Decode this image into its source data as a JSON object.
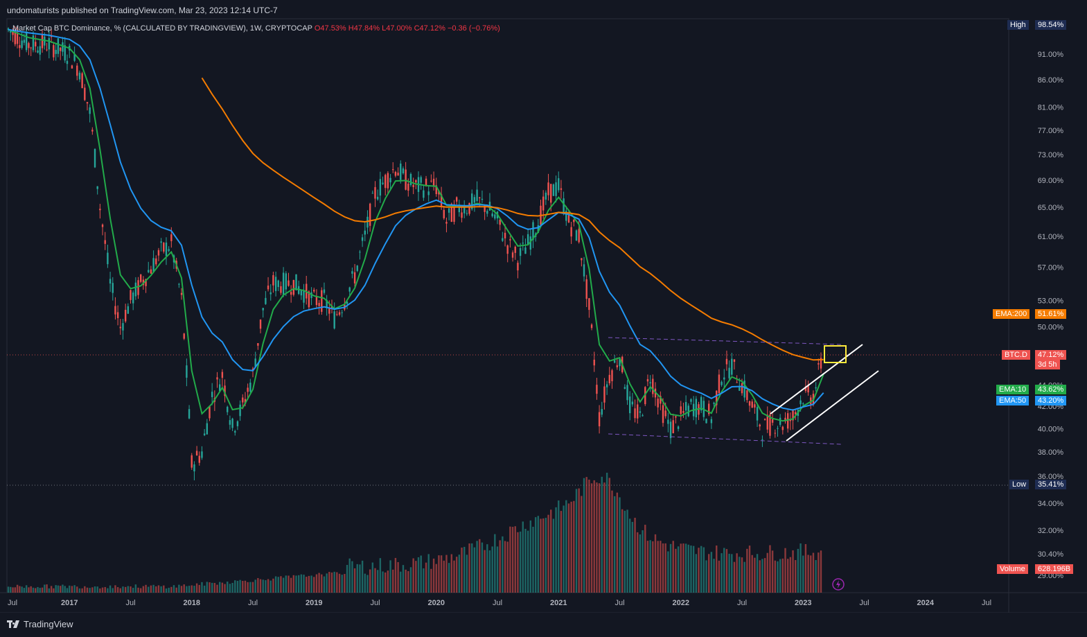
{
  "header": {
    "publisher_line": "undomaturists published on TradingView.com, Mar 23, 2023 12:14 UTC-7"
  },
  "legend": {
    "symbol_desc": "Market Cap BTC Dominance, % (CALCULATED BY TRADINGVIEW), 1W, CRYPTOCAP",
    "open": "O47.53%",
    "high": "H47.84%",
    "low": "L47.00%",
    "close": "C47.12%",
    "change": "−0.36 (−0.76%)"
  },
  "footer": {
    "brand": "TradingView"
  },
  "labels": {
    "high_tag": "High",
    "high_value": "98.54%",
    "low_tag": "Low",
    "low_value": "35.41%",
    "ema200_tag": "EMA:200",
    "ema200_value": "51.61%",
    "btcd_tag": "BTC.D",
    "btcd_value": "47.12%",
    "btcd_countdown": "3d 5h",
    "ema10_tag": "EMA:10",
    "ema10_value": "43.62%",
    "ema50_tag": "EMA:50",
    "ema50_value": "43.20%",
    "volume_tag": "Volume",
    "volume_value": "628.196B"
  },
  "colors": {
    "background": "#131722",
    "up": "#26a69a",
    "down": "#ef5350",
    "ema10": "#22ab4a",
    "ema50": "#2196f3",
    "ema200": "#f57c00",
    "highlight_box": "#ffeb3b",
    "channel": "#ffffff",
    "range_dashed": "#7e57c2"
  },
  "chart_data": {
    "type": "candlestick",
    "title": "Market Cap BTC Dominance, % (CALCULATED BY TRADINGVIEW), 1W, CRYPTOCAP",
    "x_ticks": [
      "Jul",
      "2017",
      "Jul",
      "2018",
      "Jul",
      "2019",
      "Jul",
      "2020",
      "Jul",
      "2021",
      "Jul",
      "2022",
      "Jul",
      "2023",
      "Jul",
      "2024",
      "Jul"
    ],
    "y_ticks": [
      "91.00%",
      "86.00%",
      "81.00%",
      "77.00%",
      "73.00%",
      "69.00%",
      "65.00%",
      "61.00%",
      "57.00%",
      "53.00%",
      "50.00%",
      "44.00%",
      "42.00%",
      "40.00%",
      "38.00%",
      "36.00%",
      "34.00%",
      "32.00%",
      "30.40%",
      "29.00%"
    ],
    "y_scale": "log",
    "series": [
      {
        "name": "BTC.D",
        "note": "weekly closes, approximate",
        "points": [
          [
            "2016-07",
            96
          ],
          [
            "2016-09",
            93
          ],
          [
            "2016-11",
            93
          ],
          [
            "2017-01",
            91
          ],
          [
            "2017-02",
            88
          ],
          [
            "2017-03",
            80
          ],
          [
            "2017-04",
            65
          ],
          [
            "2017-05",
            55
          ],
          [
            "2017-06",
            50
          ],
          [
            "2017-07",
            53
          ],
          [
            "2017-08",
            55
          ],
          [
            "2017-09",
            57
          ],
          [
            "2017-10",
            59
          ],
          [
            "2017-11",
            60
          ],
          [
            "2017-12",
            53
          ],
          [
            "2018-01",
            37
          ],
          [
            "2018-02",
            38
          ],
          [
            "2018-03",
            43
          ],
          [
            "2018-04",
            45
          ],
          [
            "2018-05",
            40
          ],
          [
            "2018-06",
            42
          ],
          [
            "2018-07",
            45
          ],
          [
            "2018-08",
            52
          ],
          [
            "2018-09",
            55
          ],
          [
            "2018-10",
            55
          ],
          [
            "2018-11",
            55
          ],
          [
            "2018-12",
            54
          ],
          [
            "2019-01",
            53
          ],
          [
            "2019-02",
            53
          ],
          [
            "2019-03",
            51
          ],
          [
            "2019-04",
            53
          ],
          [
            "2019-05",
            56
          ],
          [
            "2019-06",
            61
          ],
          [
            "2019-07",
            67
          ],
          [
            "2019-08",
            69
          ],
          [
            "2019-09",
            71
          ],
          [
            "2019-10",
            69
          ],
          [
            "2019-11",
            68
          ],
          [
            "2019-12",
            68
          ],
          [
            "2020-01",
            68
          ],
          [
            "2020-02",
            63
          ],
          [
            "2020-03",
            65
          ],
          [
            "2020-04",
            65
          ],
          [
            "2020-05",
            66
          ],
          [
            "2020-06",
            65
          ],
          [
            "2020-07",
            63
          ],
          [
            "2020-08",
            60
          ],
          [
            "2020-09",
            58
          ],
          [
            "2020-10",
            60
          ],
          [
            "2020-11",
            63
          ],
          [
            "2020-12",
            67
          ],
          [
            "2021-01",
            68
          ],
          [
            "2021-02",
            63
          ],
          [
            "2021-03",
            61
          ],
          [
            "2021-04",
            52
          ],
          [
            "2021-05",
            41
          ],
          [
            "2021-06",
            45
          ],
          [
            "2021-07",
            47
          ],
          [
            "2021-08",
            42
          ],
          [
            "2021-09",
            41
          ],
          [
            "2021-10",
            45
          ],
          [
            "2021-11",
            42
          ],
          [
            "2021-12",
            40
          ],
          [
            "2022-01",
            41
          ],
          [
            "2022-02",
            42
          ],
          [
            "2022-03",
            42
          ],
          [
            "2022-04",
            41
          ],
          [
            "2022-05",
            45
          ],
          [
            "2022-06",
            46
          ],
          [
            "2022-07",
            44
          ],
          [
            "2022-08",
            42
          ],
          [
            "2022-09",
            40
          ],
          [
            "2022-10",
            40.5
          ],
          [
            "2022-11",
            40.5
          ],
          [
            "2022-12",
            41
          ],
          [
            "2023-01",
            43
          ],
          [
            "2023-02",
            43
          ],
          [
            "2023-03",
            47.12
          ]
        ]
      },
      {
        "name": "EMA:10",
        "last": 43.62
      },
      {
        "name": "EMA:50",
        "last": 43.2
      },
      {
        "name": "EMA:200",
        "last": 51.61
      },
      {
        "name": "Volume",
        "last": "628.196B"
      }
    ],
    "high": 98.54,
    "low": 35.41,
    "last_close": 47.12,
    "grid": false,
    "annotations": [
      "ascending channel (white parallel lines)",
      "descending range (purple dashed lines)",
      "yellow highlight box at last candle"
    ]
  }
}
